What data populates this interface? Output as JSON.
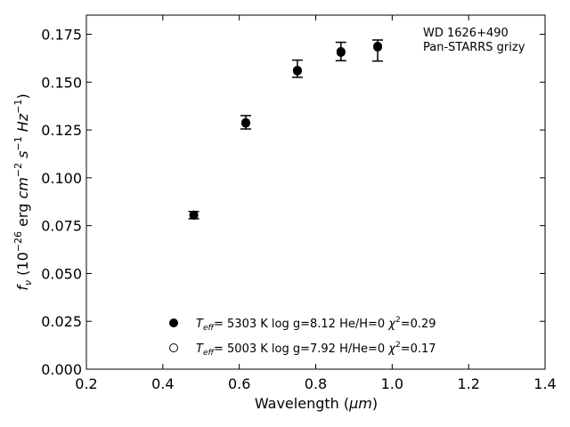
{
  "chart_data": {
    "type": "scatter",
    "annotation": [
      "WD 1626+490",
      "Pan-STARRS grizy"
    ],
    "xlabel": {
      "main": "Wavelength (",
      "unit": "μm",
      "close": ")"
    },
    "ylabel": {
      "f": "f",
      "nu": "ν",
      "p1": " (10",
      "exp1": "−26",
      "p2": " erg ",
      "cm": "cm",
      "exp2": "−2",
      "s": " s",
      "exp3": "−1",
      "hz": " Hz",
      "exp4": "−1",
      "close": ")"
    },
    "xlim": [
      0.2,
      1.4
    ],
    "ylim": [
      0.0,
      0.185
    ],
    "xticks": [
      0.2,
      0.4,
      0.6,
      0.8,
      1.0,
      1.2,
      1.4
    ],
    "xtick_labels": [
      "0.2",
      "0.4",
      "0.6",
      "0.8",
      "1.0",
      "1.2",
      "1.4"
    ],
    "yticks": [
      0.0,
      0.025,
      0.05,
      0.075,
      0.1,
      0.125,
      0.15,
      0.175
    ],
    "ytick_labels": [
      "0.000",
      "0.025",
      "0.050",
      "0.075",
      "0.100",
      "0.125",
      "0.150",
      "0.175"
    ],
    "grid": false,
    "legend_position": "bottom-center",
    "series": [
      {
        "name": "5303 K  log g=8.12  He/H=0  χ²=0.29",
        "label": {
          "T": "T",
          "eff": "eff",
          "rest": "=  5303 K  log g=8.12  He/H=0  ",
          "chi": "χ",
          "two": "2",
          "val": "=0.29"
        },
        "marker": "filled",
        "x": [
          0.481,
          0.617,
          0.752,
          0.866,
          0.962
        ],
        "y": [
          0.0804,
          0.1285,
          0.1558,
          0.1655,
          0.1683
        ]
      },
      {
        "name": "5003 K  log g=7.92  H/He=0  χ²=0.17",
        "label": {
          "T": "T",
          "eff": "eff",
          "rest": "=  5003 K  log g=7.92  H/He=0  ",
          "chi": "χ",
          "two": "2",
          "val": "=0.17"
        },
        "marker": "open",
        "x": [
          0.481,
          0.617,
          0.752,
          0.866,
          0.962
        ],
        "y": [
          0.0806,
          0.1289,
          0.1562,
          0.166,
          0.1688
        ]
      }
    ],
    "observed": {
      "x": [
        0.481,
        0.617,
        0.752,
        0.866,
        0.962
      ],
      "y": [
        0.0805,
        0.129,
        0.157,
        0.166,
        0.1665
      ],
      "yerr": [
        0.0019,
        0.0035,
        0.0045,
        0.0048,
        0.0055
      ]
    }
  }
}
